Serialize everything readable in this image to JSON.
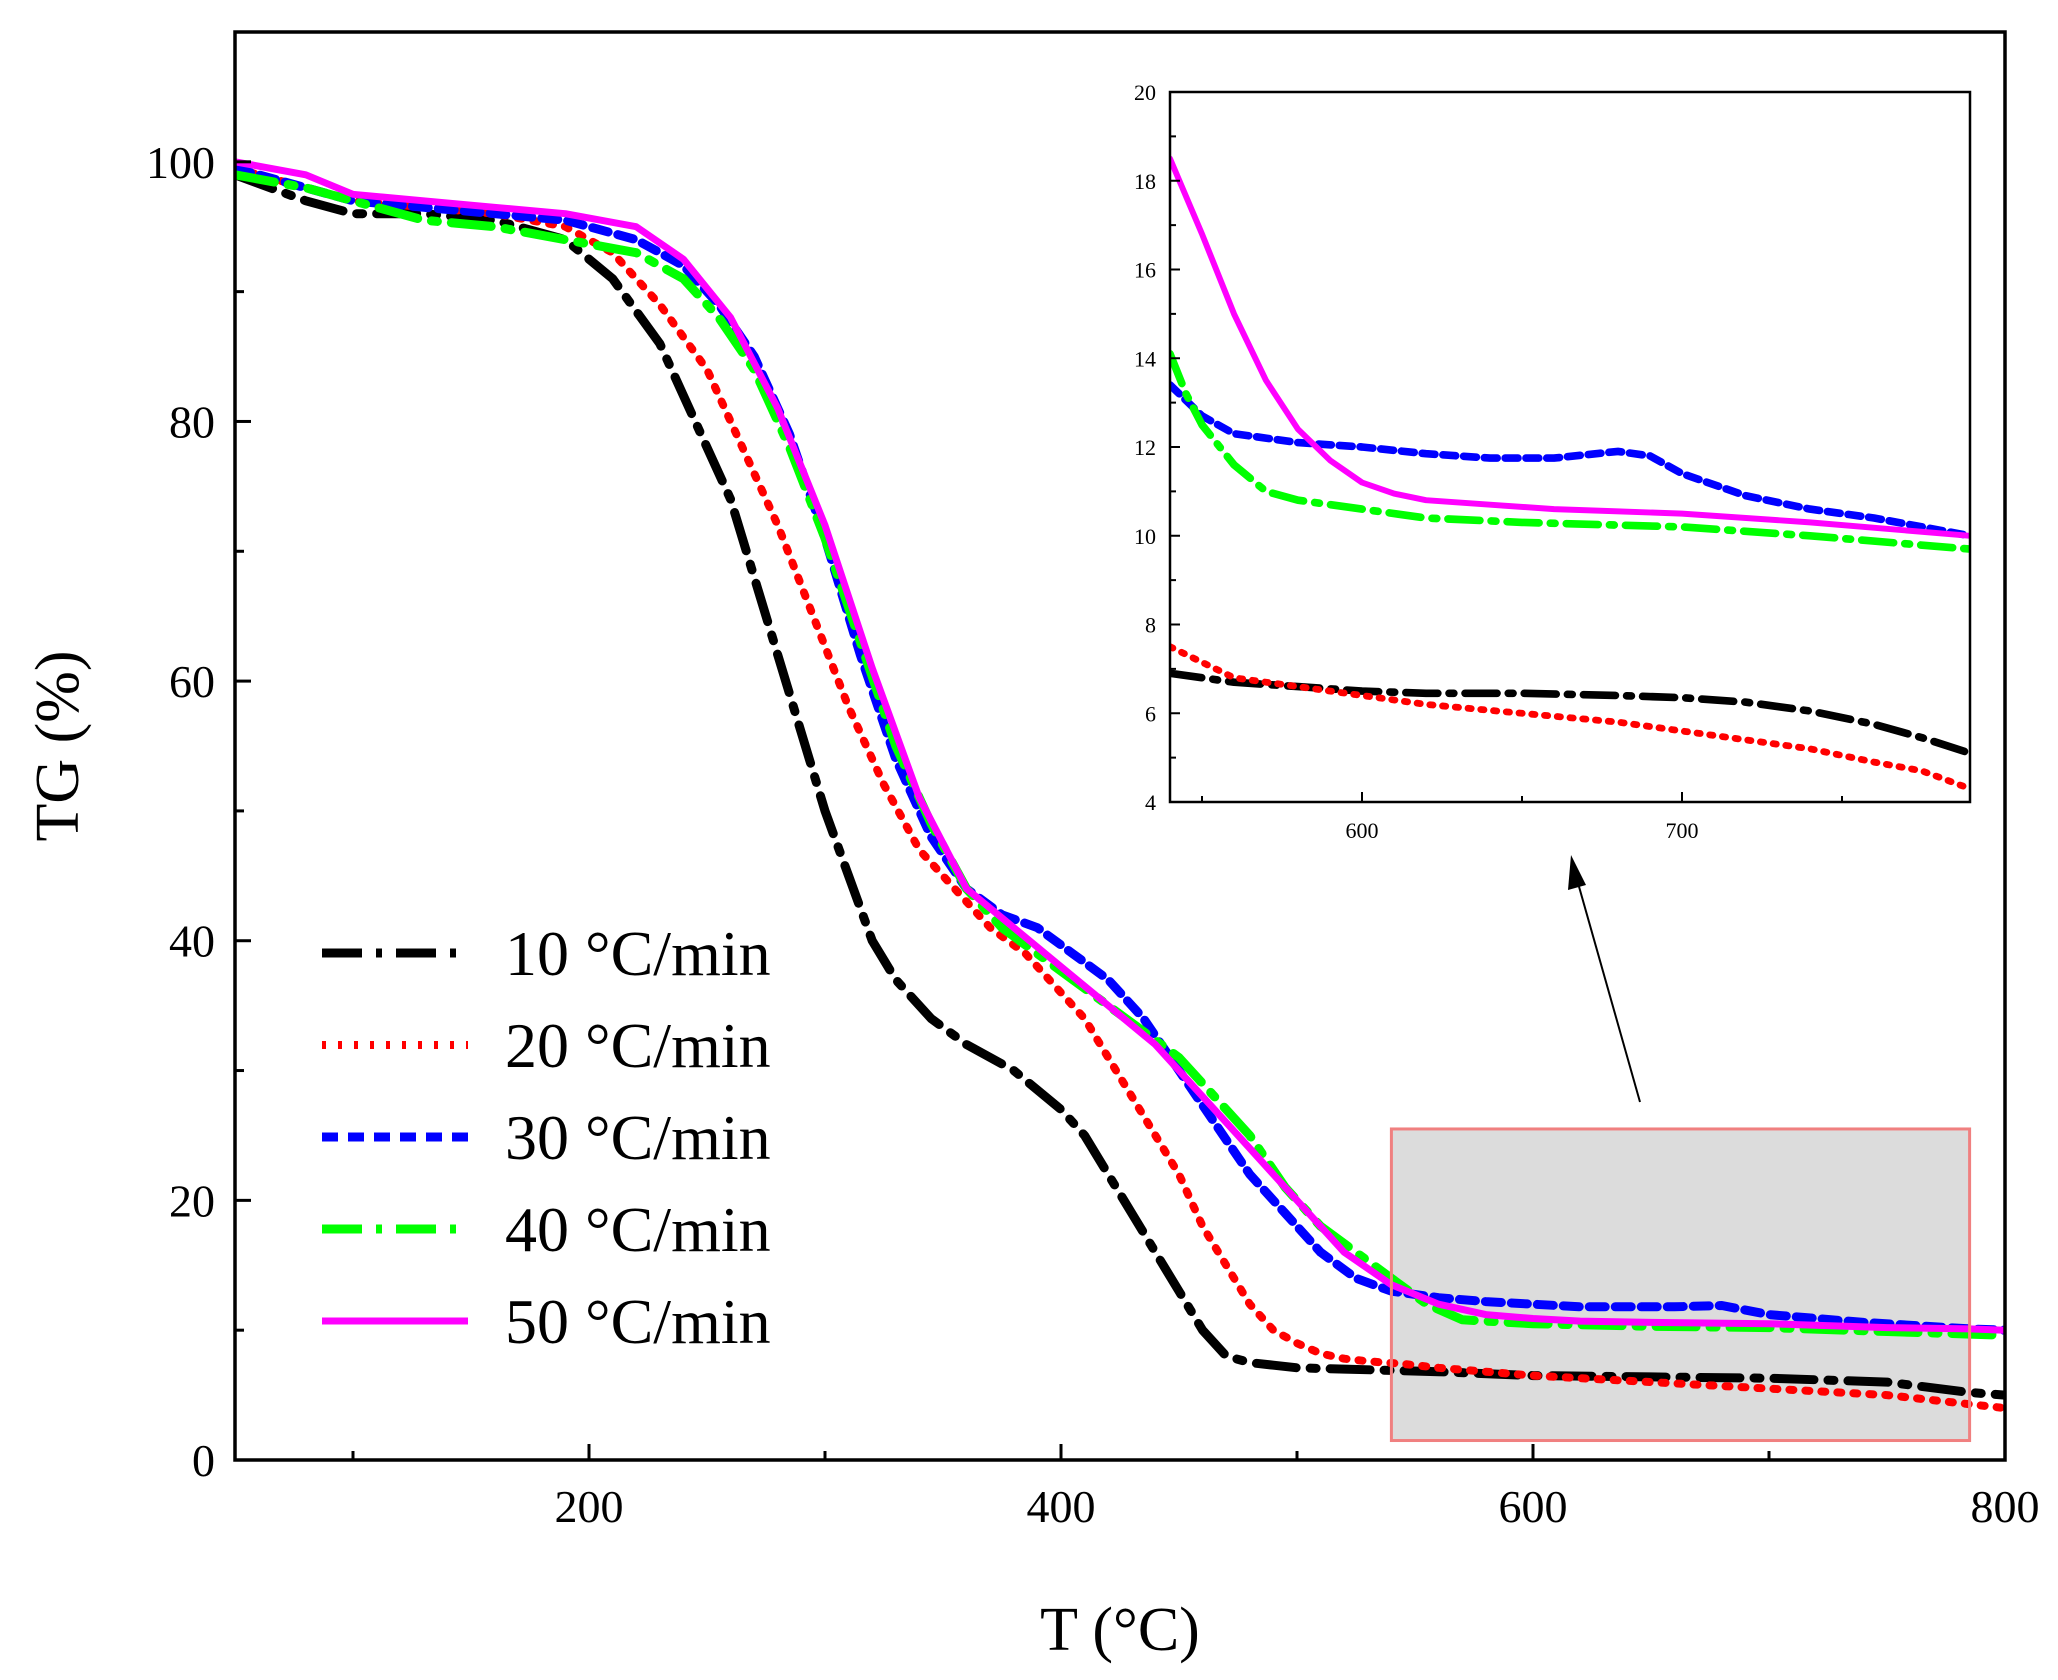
{
  "chart_data": [
    {
      "type": "line",
      "xlabel": "T (°C)",
      "ylabel": "TG (%)",
      "xlim": [
        50,
        800
      ],
      "ylim": [
        0,
        110
      ],
      "xticks": [
        200,
        400,
        600,
        800
      ],
      "yticks": [
        0,
        20,
        40,
        60,
        80,
        100
      ],
      "legend_position": "bottom-left",
      "highlight_box": {
        "x_range": [
          540,
          785
        ],
        "y_range": [
          1.5,
          25.5
        ]
      },
      "series": [
        {
          "name": "10 °C/min",
          "color": "#000000",
          "style": "dash-dot",
          "x": [
            50,
            80,
            100,
            130,
            160,
            190,
            210,
            230,
            245,
            260,
            270,
            280,
            290,
            300,
            310,
            320,
            330,
            345,
            360,
            380,
            400,
            410,
            420,
            430,
            440,
            450,
            460,
            470,
            480,
            490,
            500,
            520,
            540,
            560,
            600,
            650,
            700,
            750,
            785,
            800
          ],
          "y": [
            99,
            97,
            96,
            96,
            95.5,
            94,
            91,
            86,
            80,
            74,
            68,
            62,
            56,
            50,
            45,
            40,
            37,
            34,
            32,
            30,
            27,
            25,
            22,
            19,
            16,
            13,
            10,
            8,
            7.5,
            7.3,
            7.1,
            7,
            6.9,
            6.8,
            6.5,
            6.4,
            6.3,
            6.0,
            5.2,
            5
          ]
        },
        {
          "name": "20 °C/min",
          "color": "#ff0000",
          "style": "dotted",
          "x": [
            50,
            80,
            100,
            130,
            160,
            190,
            210,
            230,
            250,
            265,
            280,
            295,
            310,
            325,
            340,
            355,
            370,
            385,
            400,
            410,
            420,
            430,
            440,
            450,
            460,
            470,
            480,
            490,
            500,
            510,
            520,
            530,
            545,
            560,
            600,
            650,
            700,
            750,
            785,
            800
          ],
          "y": [
            99.5,
            98,
            97,
            96.5,
            96,
            95,
            93,
            89,
            84,
            78,
            72,
            65,
            58,
            52,
            47,
            44,
            41,
            39,
            36,
            34,
            31,
            28,
            25,
            22,
            18,
            15,
            12,
            10,
            9,
            8.2,
            7.8,
            7.6,
            7.4,
            7.1,
            6.5,
            6.0,
            5.5,
            5.0,
            4.3,
            4
          ]
        },
        {
          "name": "30 °C/min",
          "color": "#0000ff",
          "style": "dashed",
          "x": [
            50,
            80,
            100,
            130,
            160,
            190,
            220,
            240,
            255,
            270,
            285,
            300,
            315,
            330,
            345,
            360,
            375,
            390,
            405,
            420,
            435,
            450,
            465,
            480,
            495,
            510,
            525,
            540,
            560,
            580,
            600,
            620,
            660,
            680,
            700,
            740,
            785,
            800
          ],
          "y": [
            99.5,
            98,
            97,
            96.5,
            96,
            95.5,
            94,
            92,
            89,
            85,
            79,
            71,
            62,
            54,
            48,
            44,
            42,
            41,
            39,
            37,
            34,
            30,
            26,
            22,
            19,
            16,
            14,
            13,
            12.5,
            12.2,
            12,
            11.8,
            11.8,
            11.9,
            11.2,
            10.6,
            10.1,
            10
          ]
        },
        {
          "name": "40 °C/min",
          "color": "#00ff00",
          "style": "dash-dot",
          "x": [
            50,
            80,
            100,
            130,
            160,
            190,
            220,
            240,
            255,
            270,
            285,
            300,
            315,
            330,
            345,
            360,
            375,
            390,
            405,
            420,
            435,
            450,
            465,
            480,
            495,
            510,
            525,
            540,
            555,
            570,
            600,
            650,
            700,
            750,
            785,
            800
          ],
          "y": [
            99,
            98,
            97,
            95.5,
            95,
            94,
            93,
            91,
            88,
            84,
            78,
            71,
            63,
            55,
            49,
            44,
            41,
            39,
            37,
            35,
            33,
            31,
            28,
            25,
            21,
            18,
            16,
            14,
            12,
            10.8,
            10.5,
            10.3,
            10.2,
            9.9,
            9.7,
            9.6
          ]
        },
        {
          "name": "50 °C/min",
          "color": "#ff00ff",
          "style": "solid",
          "x": [
            50,
            80,
            100,
            130,
            160,
            190,
            220,
            240,
            260,
            280,
            300,
            320,
            340,
            360,
            380,
            400,
            420,
            440,
            460,
            480,
            500,
            520,
            540,
            560,
            580,
            600,
            620,
            650,
            700,
            750,
            785,
            800
          ],
          "y": [
            100,
            99,
            97.5,
            97,
            96.5,
            96,
            95,
            92.5,
            88,
            81,
            72,
            61,
            51,
            44,
            41,
            38,
            35,
            32,
            28,
            24,
            20,
            16,
            13.5,
            12,
            11.2,
            10.9,
            10.7,
            10.6,
            10.5,
            10.2,
            10.1,
            10
          ]
        }
      ]
    },
    {
      "type": "line",
      "xlim": [
        540,
        790
      ],
      "ylim": [
        4,
        20
      ],
      "xticks": [
        600,
        700
      ],
      "yticks": [
        4,
        6,
        8,
        10,
        12,
        14,
        16,
        18,
        20
      ],
      "series": [
        {
          "name": "10 °C/min",
          "color": "#000000",
          "style": "dash-dot",
          "x": [
            540,
            560,
            580,
            600,
            620,
            650,
            680,
            700,
            720,
            740,
            760,
            775,
            790
          ],
          "y": [
            6.9,
            6.7,
            6.6,
            6.5,
            6.45,
            6.45,
            6.4,
            6.35,
            6.25,
            6.05,
            5.75,
            5.45,
            5.1
          ]
        },
        {
          "name": "20 °C/min",
          "color": "#ff0000",
          "style": "dotted",
          "x": [
            540,
            560,
            580,
            600,
            620,
            650,
            680,
            700,
            720,
            740,
            760,
            775,
            790
          ],
          "y": [
            7.5,
            6.8,
            6.6,
            6.4,
            6.2,
            6.0,
            5.8,
            5.6,
            5.4,
            5.2,
            4.9,
            4.7,
            4.3
          ]
        },
        {
          "name": "30 °C/min",
          "color": "#0000ff",
          "style": "dashed",
          "x": [
            540,
            550,
            560,
            580,
            600,
            620,
            640,
            660,
            680,
            690,
            700,
            720,
            740,
            760,
            790
          ],
          "y": [
            13.4,
            12.7,
            12.3,
            12.1,
            12.0,
            11.85,
            11.75,
            11.75,
            11.9,
            11.8,
            11.4,
            10.9,
            10.6,
            10.4,
            10.0
          ]
        },
        {
          "name": "40 °C/min",
          "color": "#00ff00",
          "style": "dash-dot",
          "x": [
            540,
            545,
            550,
            560,
            570,
            580,
            600,
            620,
            650,
            700,
            740,
            790
          ],
          "y": [
            14.1,
            13.2,
            12.5,
            11.6,
            11.0,
            10.8,
            10.6,
            10.4,
            10.3,
            10.2,
            10.0,
            9.7
          ]
        },
        {
          "name": "50 °C/min",
          "color": "#ff00ff",
          "style": "solid",
          "x": [
            540,
            550,
            560,
            570,
            580,
            590,
            600,
            610,
            620,
            640,
            660,
            700,
            740,
            790
          ],
          "y": [
            18.5,
            16.8,
            15.0,
            13.5,
            12.4,
            11.7,
            11.2,
            10.95,
            10.8,
            10.7,
            10.6,
            10.5,
            10.3,
            10.0
          ]
        }
      ]
    }
  ]
}
